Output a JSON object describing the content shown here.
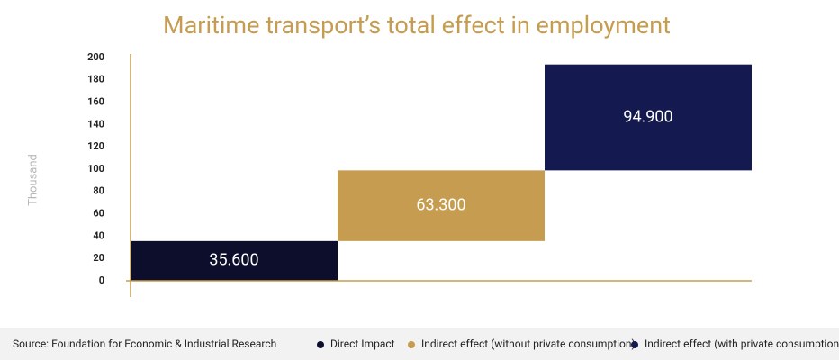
{
  "chart_data": {
    "type": "waterfall",
    "title": "Maritime transport’s total effect in employment",
    "y_label": "Thousand",
    "source": "Source: Foundation for Economic & Industrial Research",
    "ylim": [
      0,
      200
    ],
    "yticks": [
      0,
      20,
      40,
      60,
      80,
      100,
      120,
      140,
      160,
      180,
      200
    ],
    "axis_color": "#c69d50",
    "series": [
      {
        "name": "Direct Impact",
        "color": "#0d0e2c",
        "values": [
          35.6
        ],
        "value_labels": [
          "35.600"
        ]
      },
      {
        "name": "Indirect effect (without private consumption)",
        "color": "#c69d50",
        "values": [
          63.3
        ],
        "value_labels": [
          "63.300"
        ]
      },
      {
        "name": "Indirect effect (with private consumption)",
        "color": "#141a4f",
        "values": [
          94.9
        ],
        "value_labels": [
          "94.900"
        ]
      }
    ]
  }
}
